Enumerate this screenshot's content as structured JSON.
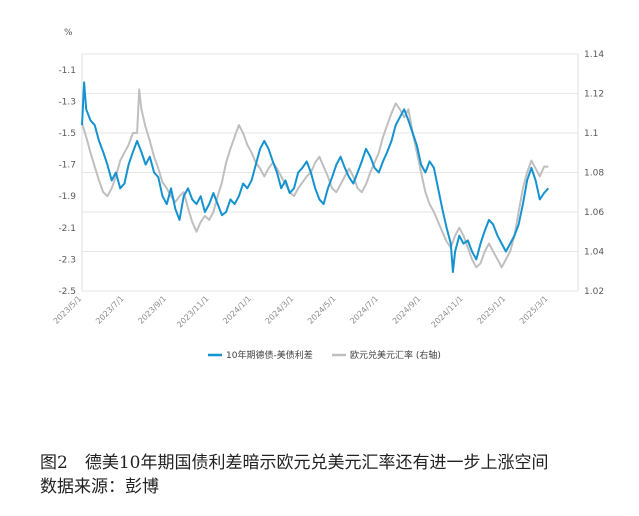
{
  "chart_data": {
    "type": "line",
    "y_unit_label": "%",
    "left_axis": {
      "ticks": [
        -1.1,
        -1.3,
        -1.5,
        -1.7,
        -1.9,
        -2.1,
        -2.3,
        -2.5
      ],
      "ylim": [
        -2.5,
        -1.0
      ]
    },
    "right_axis": {
      "ticks": [
        1.14,
        1.12,
        1.1,
        1.08,
        1.06,
        1.04,
        1.02
      ],
      "ylim": [
        1.02,
        1.14
      ]
    },
    "x_ticks": [
      "2023/5/1",
      "2023/7/1",
      "2023/9/1",
      "2023/11/1",
      "2024/1/1",
      "2024/3/1",
      "2024/5/1",
      "2024/7/1",
      "2024/9/1",
      "2024/11/1",
      "2025/1/1",
      "2025/3/1"
    ],
    "x_range_months": [
      0,
      11.7
    ],
    "grid": true,
    "legend_position": "bottom",
    "series": [
      {
        "name": "10年期德债-美债利差",
        "axis": "left",
        "color": "#1592d0",
        "points": [
          [
            0.0,
            -1.45
          ],
          [
            0.05,
            -1.18
          ],
          [
            0.1,
            -1.35
          ],
          [
            0.2,
            -1.42
          ],
          [
            0.3,
            -1.45
          ],
          [
            0.4,
            -1.55
          ],
          [
            0.5,
            -1.62
          ],
          [
            0.6,
            -1.7
          ],
          [
            0.7,
            -1.8
          ],
          [
            0.8,
            -1.75
          ],
          [
            0.9,
            -1.85
          ],
          [
            1.0,
            -1.82
          ],
          [
            1.1,
            -1.7
          ],
          [
            1.2,
            -1.62
          ],
          [
            1.3,
            -1.55
          ],
          [
            1.4,
            -1.62
          ],
          [
            1.5,
            -1.7
          ],
          [
            1.6,
            -1.65
          ],
          [
            1.7,
            -1.75
          ],
          [
            1.8,
            -1.78
          ],
          [
            1.9,
            -1.9
          ],
          [
            2.0,
            -1.95
          ],
          [
            2.1,
            -1.85
          ],
          [
            2.2,
            -1.98
          ],
          [
            2.3,
            -2.05
          ],
          [
            2.4,
            -1.9
          ],
          [
            2.5,
            -1.85
          ],
          [
            2.6,
            -1.92
          ],
          [
            2.7,
            -1.95
          ],
          [
            2.8,
            -1.9
          ],
          [
            2.9,
            -2.0
          ],
          [
            3.0,
            -1.95
          ],
          [
            3.1,
            -1.88
          ],
          [
            3.2,
            -1.95
          ],
          [
            3.3,
            -2.02
          ],
          [
            3.4,
            -2.0
          ],
          [
            3.5,
            -1.92
          ],
          [
            3.6,
            -1.95
          ],
          [
            3.7,
            -1.9
          ],
          [
            3.8,
            -1.82
          ],
          [
            3.9,
            -1.85
          ],
          [
            4.0,
            -1.8
          ],
          [
            4.1,
            -1.7
          ],
          [
            4.2,
            -1.6
          ],
          [
            4.3,
            -1.55
          ],
          [
            4.4,
            -1.6
          ],
          [
            4.5,
            -1.68
          ],
          [
            4.6,
            -1.75
          ],
          [
            4.7,
            -1.85
          ],
          [
            4.8,
            -1.8
          ],
          [
            4.9,
            -1.88
          ],
          [
            5.0,
            -1.85
          ],
          [
            5.1,
            -1.75
          ],
          [
            5.2,
            -1.72
          ],
          [
            5.3,
            -1.68
          ],
          [
            5.4,
            -1.75
          ],
          [
            5.5,
            -1.85
          ],
          [
            5.6,
            -1.92
          ],
          [
            5.7,
            -1.95
          ],
          [
            5.8,
            -1.85
          ],
          [
            5.9,
            -1.78
          ],
          [
            6.0,
            -1.7
          ],
          [
            6.1,
            -1.65
          ],
          [
            6.2,
            -1.72
          ],
          [
            6.3,
            -1.78
          ],
          [
            6.4,
            -1.82
          ],
          [
            6.5,
            -1.75
          ],
          [
            6.6,
            -1.68
          ],
          [
            6.7,
            -1.6
          ],
          [
            6.8,
            -1.65
          ],
          [
            6.9,
            -1.72
          ],
          [
            7.0,
            -1.75
          ],
          [
            7.1,
            -1.68
          ],
          [
            7.2,
            -1.62
          ],
          [
            7.3,
            -1.55
          ],
          [
            7.4,
            -1.45
          ],
          [
            7.5,
            -1.4
          ],
          [
            7.6,
            -1.35
          ],
          [
            7.7,
            -1.42
          ],
          [
            7.8,
            -1.5
          ],
          [
            7.9,
            -1.58
          ],
          [
            8.0,
            -1.7
          ],
          [
            8.1,
            -1.75
          ],
          [
            8.2,
            -1.68
          ],
          [
            8.3,
            -1.72
          ],
          [
            8.4,
            -1.85
          ],
          [
            8.5,
            -1.98
          ],
          [
            8.6,
            -2.1
          ],
          [
            8.7,
            -2.2
          ],
          [
            8.75,
            -2.38
          ],
          [
            8.8,
            -2.25
          ],
          [
            8.9,
            -2.15
          ],
          [
            9.0,
            -2.2
          ],
          [
            9.1,
            -2.18
          ],
          [
            9.2,
            -2.25
          ],
          [
            9.3,
            -2.3
          ],
          [
            9.4,
            -2.2
          ],
          [
            9.5,
            -2.12
          ],
          [
            9.6,
            -2.05
          ],
          [
            9.7,
            -2.08
          ],
          [
            9.8,
            -2.15
          ],
          [
            9.9,
            -2.2
          ],
          [
            10.0,
            -2.25
          ],
          [
            10.1,
            -2.2
          ],
          [
            10.2,
            -2.15
          ],
          [
            10.3,
            -2.08
          ],
          [
            10.4,
            -1.95
          ],
          [
            10.5,
            -1.8
          ],
          [
            10.6,
            -1.72
          ],
          [
            10.7,
            -1.8
          ],
          [
            10.8,
            -1.92
          ],
          [
            10.9,
            -1.88
          ],
          [
            11.0,
            -1.85
          ]
        ]
      },
      {
        "name": "欧元兑美元汇率 (右轴)",
        "axis": "right",
        "color": "#bfbfbf",
        "points": [
          [
            0.0,
            1.105
          ],
          [
            0.1,
            1.098
          ],
          [
            0.2,
            1.09
          ],
          [
            0.3,
            1.083
          ],
          [
            0.4,
            1.076
          ],
          [
            0.5,
            1.07
          ],
          [
            0.6,
            1.068
          ],
          [
            0.7,
            1.072
          ],
          [
            0.8,
            1.078
          ],
          [
            0.9,
            1.086
          ],
          [
            1.0,
            1.09
          ],
          [
            1.1,
            1.094
          ],
          [
            1.2,
            1.1
          ],
          [
            1.3,
            1.1
          ],
          [
            1.35,
            1.122
          ],
          [
            1.4,
            1.112
          ],
          [
            1.5,
            1.103
          ],
          [
            1.6,
            1.096
          ],
          [
            1.7,
            1.088
          ],
          [
            1.8,
            1.082
          ],
          [
            1.9,
            1.075
          ],
          [
            2.0,
            1.072
          ],
          [
            2.1,
            1.068
          ],
          [
            2.2,
            1.065
          ],
          [
            2.3,
            1.068
          ],
          [
            2.4,
            1.07
          ],
          [
            2.5,
            1.062
          ],
          [
            2.6,
            1.055
          ],
          [
            2.7,
            1.05
          ],
          [
            2.8,
            1.055
          ],
          [
            2.9,
            1.058
          ],
          [
            3.0,
            1.056
          ],
          [
            3.1,
            1.06
          ],
          [
            3.2,
            1.068
          ],
          [
            3.3,
            1.075
          ],
          [
            3.4,
            1.085
          ],
          [
            3.5,
            1.092
          ],
          [
            3.6,
            1.098
          ],
          [
            3.7,
            1.104
          ],
          [
            3.8,
            1.1
          ],
          [
            3.9,
            1.094
          ],
          [
            4.0,
            1.09
          ],
          [
            4.1,
            1.085
          ],
          [
            4.2,
            1.082
          ],
          [
            4.3,
            1.078
          ],
          [
            4.4,
            1.082
          ],
          [
            4.5,
            1.085
          ],
          [
            4.6,
            1.082
          ],
          [
            4.7,
            1.078
          ],
          [
            4.8,
            1.074
          ],
          [
            4.9,
            1.07
          ],
          [
            5.0,
            1.068
          ],
          [
            5.1,
            1.072
          ],
          [
            5.2,
            1.075
          ],
          [
            5.3,
            1.078
          ],
          [
            5.4,
            1.08
          ],
          [
            5.5,
            1.085
          ],
          [
            5.6,
            1.088
          ],
          [
            5.7,
            1.083
          ],
          [
            5.8,
            1.078
          ],
          [
            5.9,
            1.072
          ],
          [
            6.0,
            1.07
          ],
          [
            6.1,
            1.074
          ],
          [
            6.2,
            1.078
          ],
          [
            6.3,
            1.082
          ],
          [
            6.4,
            1.078
          ],
          [
            6.5,
            1.072
          ],
          [
            6.6,
            1.07
          ],
          [
            6.7,
            1.074
          ],
          [
            6.8,
            1.08
          ],
          [
            6.9,
            1.085
          ],
          [
            7.0,
            1.09
          ],
          [
            7.1,
            1.098
          ],
          [
            7.2,
            1.104
          ],
          [
            7.3,
            1.11
          ],
          [
            7.4,
            1.115
          ],
          [
            7.5,
            1.112
          ],
          [
            7.6,
            1.108
          ],
          [
            7.7,
            1.112
          ],
          [
            7.8,
            1.1
          ],
          [
            7.9,
            1.09
          ],
          [
            8.0,
            1.08
          ],
          [
            8.1,
            1.07
          ],
          [
            8.2,
            1.064
          ],
          [
            8.3,
            1.06
          ],
          [
            8.4,
            1.055
          ],
          [
            8.5,
            1.05
          ],
          [
            8.6,
            1.045
          ],
          [
            8.7,
            1.042
          ],
          [
            8.8,
            1.048
          ],
          [
            8.9,
            1.052
          ],
          [
            9.0,
            1.048
          ],
          [
            9.1,
            1.042
          ],
          [
            9.2,
            1.036
          ],
          [
            9.3,
            1.032
          ],
          [
            9.4,
            1.034
          ],
          [
            9.5,
            1.04
          ],
          [
            9.6,
            1.044
          ],
          [
            9.7,
            1.04
          ],
          [
            9.8,
            1.036
          ],
          [
            9.9,
            1.032
          ],
          [
            10.0,
            1.036
          ],
          [
            10.1,
            1.04
          ],
          [
            10.2,
            1.048
          ],
          [
            10.3,
            1.06
          ],
          [
            10.4,
            1.072
          ],
          [
            10.5,
            1.08
          ],
          [
            10.6,
            1.086
          ],
          [
            10.7,
            1.082
          ],
          [
            10.8,
            1.078
          ],
          [
            10.9,
            1.083
          ],
          [
            11.0,
            1.083
          ]
        ]
      }
    ]
  },
  "caption": {
    "title": "图2　德美10年期国债利差暗示欧元兑美元汇率还有进一步上涨空间",
    "source": "数据来源：彭博"
  }
}
